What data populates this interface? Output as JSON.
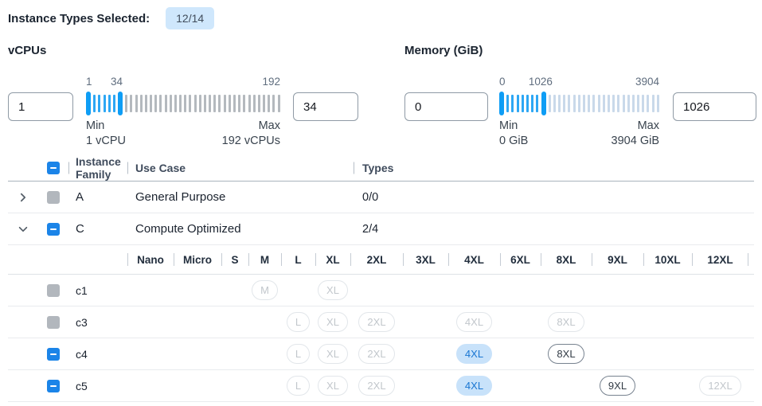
{
  "page": {
    "title_label": "Instance Types Selected:",
    "selected_badge": "12/14"
  },
  "filters": [
    {
      "label": "vCPUs",
      "min_value": "1",
      "max_value": "34",
      "scale_min": "1",
      "scale_current": "34",
      "scale_max": "192",
      "min_caption_title": "Min",
      "min_caption_value": "1 vCPU",
      "max_caption_title": "Max",
      "max_caption_value": "192 vCPUs",
      "ticks_selected": 5,
      "ticks_unselected": 32
    },
    {
      "label": "Memory (GiB)",
      "min_value": "0",
      "max_value": "1026",
      "scale_min": "0",
      "scale_current": "1026",
      "scale_max": "3904",
      "min_caption_title": "Min",
      "min_caption_value": "0 GiB",
      "max_caption_title": "Max",
      "max_caption_value": "3904 GiB",
      "ticks_selected": 7,
      "ticks_unselected": 23
    }
  ],
  "table": {
    "select_all_state": "indeterminate",
    "headers": {
      "family": "Instance Family",
      "use_case": "Use Case",
      "types": "Types"
    },
    "family_rows": [
      {
        "expanded": false,
        "checkbox": "disabled",
        "family": "A",
        "use_case": "General Purpose",
        "types": "0/0"
      },
      {
        "expanded": true,
        "checkbox": "indeterminate",
        "family": "C",
        "use_case": "Compute Optimized",
        "types": "2/4"
      }
    ],
    "sizes": [
      "Nano",
      "Micro",
      "S",
      "M",
      "L",
      "XL",
      "2XL",
      "3XL",
      "4XL",
      "6XL",
      "8XL",
      "9XL",
      "10XL",
      "12XL"
    ],
    "instance_rows": [
      {
        "name": "c1",
        "checkbox": "disabled",
        "pills": {
          "M": "disabled",
          "XL": "disabled"
        }
      },
      {
        "name": "c3",
        "checkbox": "disabled",
        "pills": {
          "L": "disabled",
          "XL": "disabled",
          "2XL": "disabled",
          "4XL": "disabled",
          "8XL": "disabled"
        }
      },
      {
        "name": "c4",
        "checkbox": "indeterminate",
        "pills": {
          "L": "disabled",
          "XL": "disabled",
          "2XL": "disabled",
          "4XL": "selected",
          "8XL": "enabled"
        }
      },
      {
        "name": "c5",
        "checkbox": "indeterminate",
        "pills": {
          "L": "disabled",
          "XL": "disabled",
          "2XL": "disabled",
          "4XL": "selected",
          "9XL": "enabled",
          "12XL": "disabled"
        }
      }
    ]
  },
  "colors": {
    "accent_blue": "#1b84e8",
    "slider_blue": "#0e9df5",
    "selected_pill_bg": "#c8e2fa",
    "selected_pill_text": "#1976d2",
    "badge_bg": "#cfe7fc"
  }
}
